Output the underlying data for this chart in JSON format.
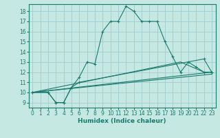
{
  "bg_color": "#c5e8e3",
  "grid_color": "#a0cccc",
  "line_color": "#1a7a6e",
  "xlabel": "Humidex (Indice chaleur)",
  "xlim": [
    -0.5,
    23.5
  ],
  "ylim": [
    8.5,
    18.7
  ],
  "xticks": [
    0,
    1,
    2,
    3,
    4,
    5,
    6,
    7,
    8,
    9,
    10,
    11,
    12,
    13,
    14,
    15,
    16,
    17,
    18,
    19,
    20,
    21,
    22,
    23
  ],
  "yticks": [
    9,
    10,
    11,
    12,
    13,
    14,
    15,
    16,
    17,
    18
  ],
  "curve1_x": [
    0,
    2,
    3,
    4,
    5,
    6,
    7,
    8,
    9,
    10,
    11,
    12,
    13,
    14,
    15,
    16,
    17,
    18,
    19,
    20,
    21,
    22,
    23
  ],
  "curve1_y": [
    10,
    10,
    9,
    9,
    10.5,
    11.5,
    13,
    12.8,
    16.0,
    17.0,
    17.0,
    18.5,
    18.0,
    17.0,
    17.0,
    17.0,
    15.0,
    13.5,
    12.0,
    13.0,
    12.5,
    12.0,
    12.0
  ],
  "curve2_x": [
    0,
    2,
    3,
    4,
    5,
    6,
    22,
    23
  ],
  "curve2_y": [
    10,
    10,
    9,
    9,
    10.5,
    11.0,
    13.3,
    12.0
  ],
  "line3_x": [
    0,
    19,
    22,
    23
  ],
  "line3_y": [
    10.0,
    13.0,
    12.0,
    12.0
  ],
  "line4_x": [
    0,
    23
  ],
  "line4_y": [
    10.0,
    12.0
  ],
  "line5_x": [
    0,
    23
  ],
  "line5_y": [
    10.0,
    11.8
  ]
}
